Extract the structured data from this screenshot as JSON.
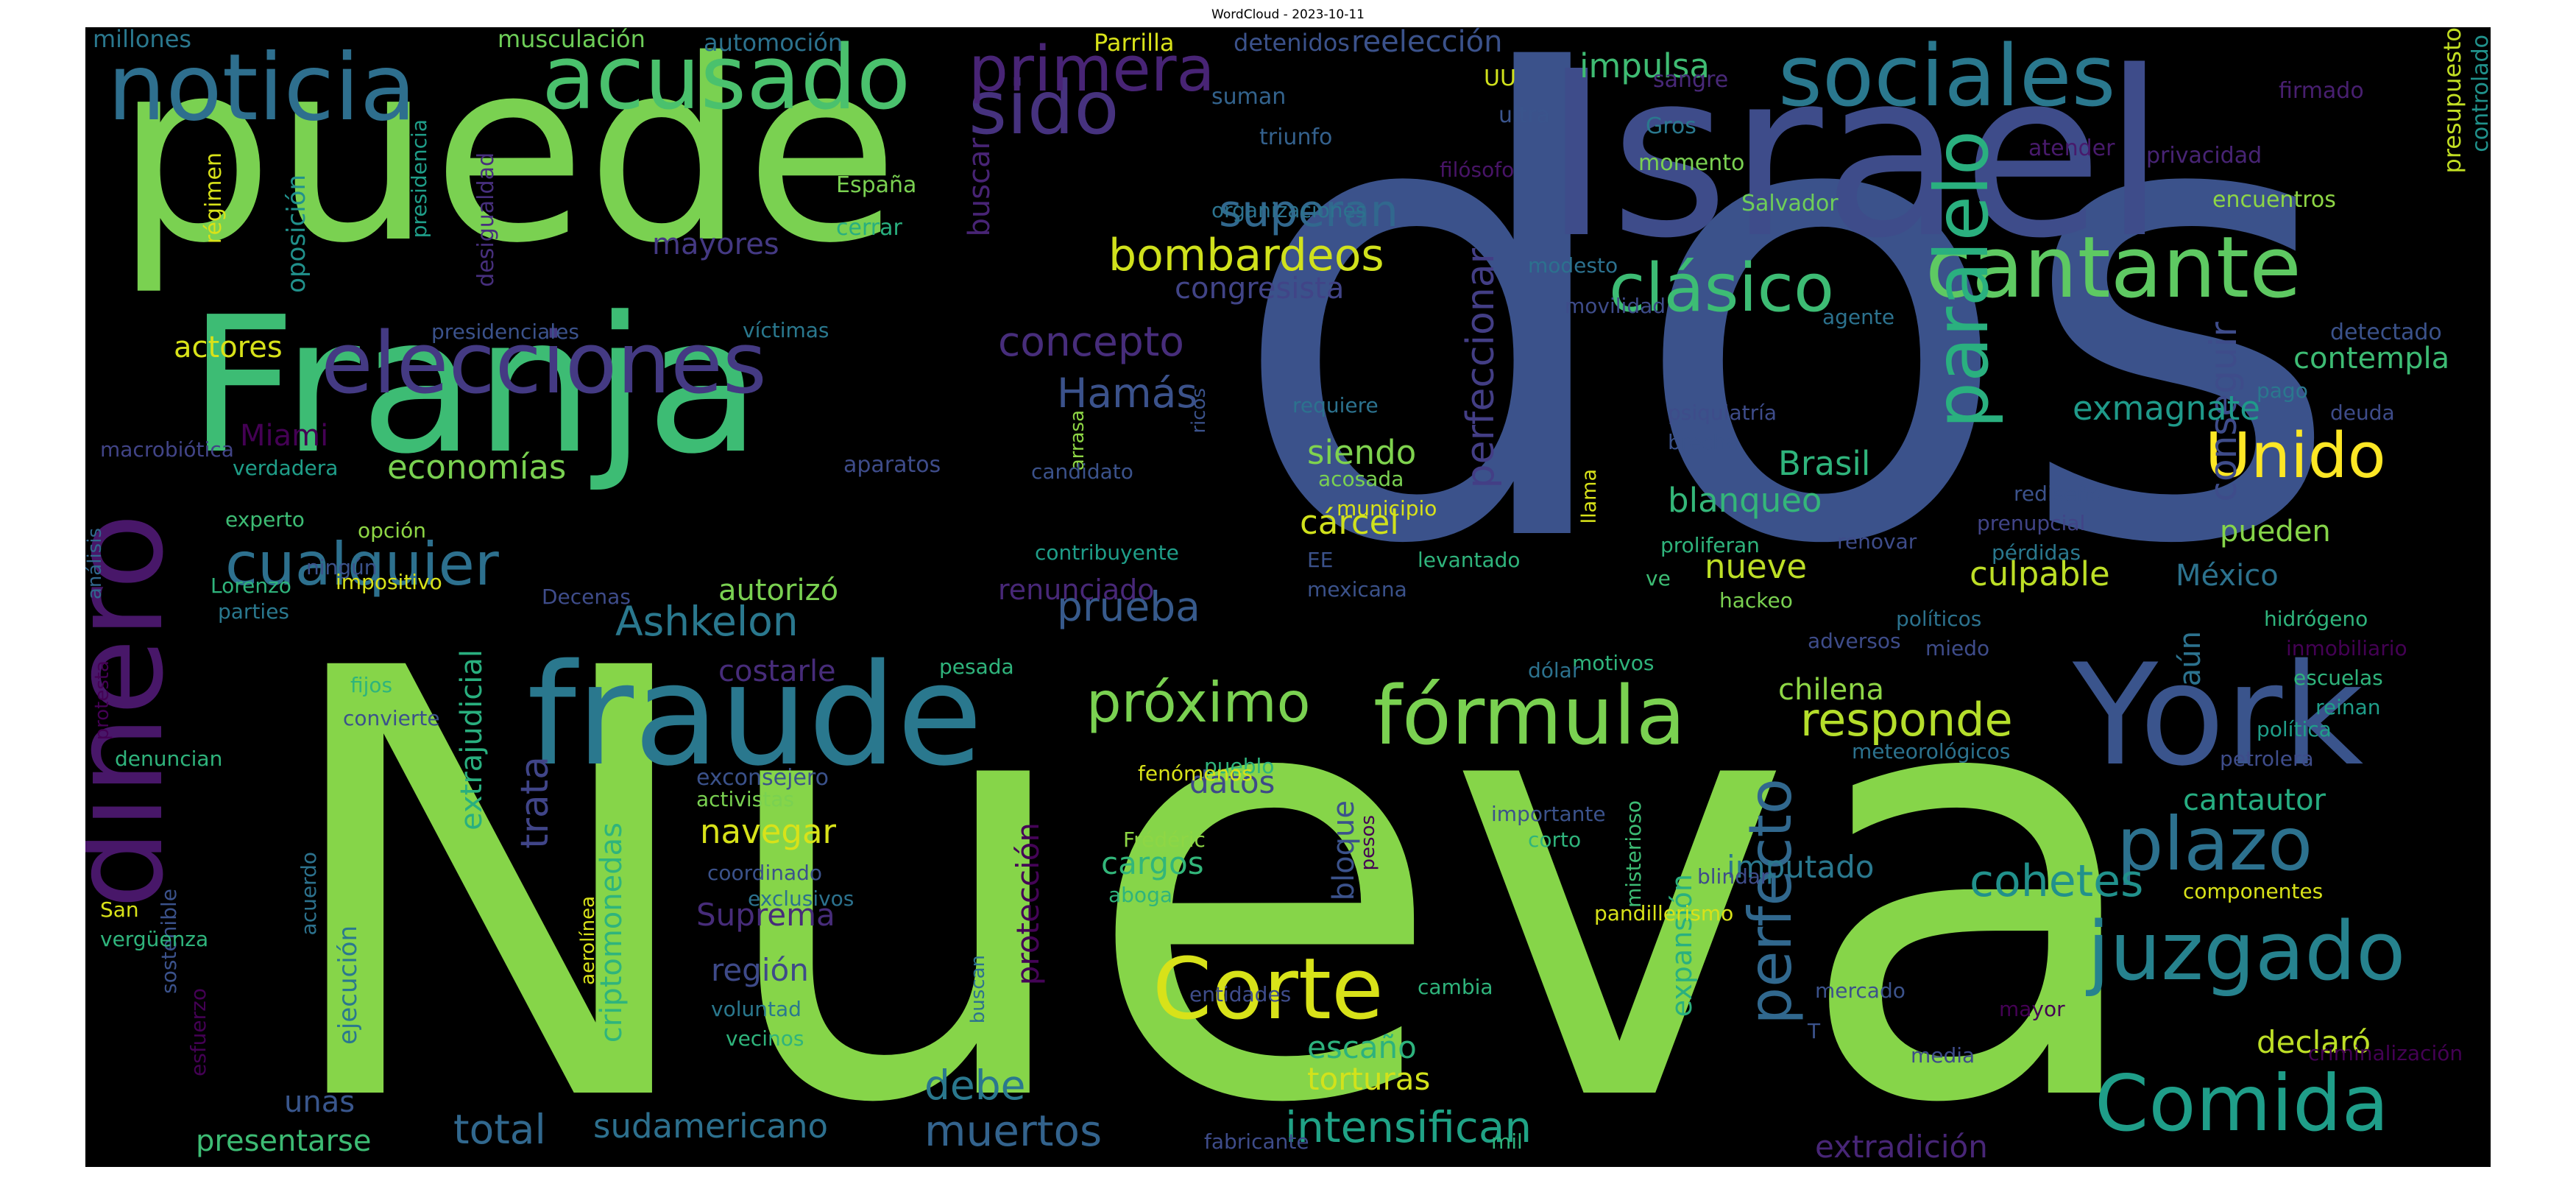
{
  "title": "WordCloud - 2023-10-11",
  "canvas_background": "#000000",
  "colormap": [
    "#440154",
    "#3b528b",
    "#21918c",
    "#5ec962",
    "#fde725"
  ],
  "words": [
    {
      "text": "dos",
      "color": "#3b528b"
    },
    {
      "text": "Nueva",
      "color": "#86d549"
    },
    {
      "text": "puede",
      "color": "#7ad151"
    },
    {
      "text": "Israel",
      "color": "#3e4c8a"
    },
    {
      "text": "Franja",
      "color": "#3dbc74"
    },
    {
      "text": "fraude",
      "color": "#2a788e"
    },
    {
      "text": "York",
      "color": "#3a548c"
    },
    {
      "text": "dinero",
      "color": "#481769"
    },
    {
      "text": "noticia",
      "color": "#2e6f8e"
    },
    {
      "text": "acusado",
      "color": "#4ac16d"
    },
    {
      "text": "sociales",
      "color": "#2a788e"
    },
    {
      "text": "elecciones",
      "color": "#443a83"
    },
    {
      "text": "cantante",
      "color": "#5ec962"
    },
    {
      "text": "paralelo",
      "color": "#2ab07f"
    },
    {
      "text": "fórmula",
      "color": "#7ad151"
    },
    {
      "text": "juzgado",
      "color": "#26828e"
    },
    {
      "text": "Comida",
      "color": "#1f9e89"
    },
    {
      "text": "Corte",
      "color": "#d8e219"
    },
    {
      "text": "plazo",
      "color": "#2c718e"
    },
    {
      "text": "sido",
      "color": "#46327e"
    },
    {
      "text": "primera",
      "color": "#482475"
    },
    {
      "text": "clásico",
      "color": "#3dbc74"
    },
    {
      "text": "cualquier",
      "color": "#2d708e"
    },
    {
      "text": "próximo",
      "color": "#7ad151"
    },
    {
      "text": "perfecto",
      "color": "#31688e"
    },
    {
      "text": "Unido",
      "color": "#fde725"
    },
    {
      "text": "bombardeos",
      "color": "#d0e11c"
    },
    {
      "text": "superan",
      "color": "#31688e"
    },
    {
      "text": "responde",
      "color": "#b5de2b"
    },
    {
      "text": "concepto",
      "color": "#472d7b"
    },
    {
      "text": "Hamás",
      "color": "#3b528b"
    },
    {
      "text": "muertos",
      "color": "#33638d"
    },
    {
      "text": "intensifican",
      "color": "#20a386"
    },
    {
      "text": "cohetes",
      "color": "#21918c"
    },
    {
      "text": "prueba",
      "color": "#375a8c"
    },
    {
      "text": "perfeccionar",
      "color": "#433e85"
    },
    {
      "text": "Ashkelon",
      "color": "#2a788e"
    },
    {
      "text": "conseguir",
      "color": "#3e4c8a"
    },
    {
      "text": "total",
      "color": "#31688e"
    },
    {
      "text": "debe",
      "color": "#2a788e"
    },
    {
      "text": "mayores",
      "color": "#443983"
    },
    {
      "text": "congresista",
      "color": "#414487"
    },
    {
      "text": "exmagnate",
      "color": "#1f9a8a"
    },
    {
      "text": "culpable",
      "color": "#bddf26"
    },
    {
      "text": "trata",
      "color": "#404588"
    },
    {
      "text": "impulsa",
      "color": "#3fbc73"
    },
    {
      "text": "Brasil",
      "color": "#2fb47c"
    },
    {
      "text": "blanqueo",
      "color": "#34b679"
    },
    {
      "text": "nueve",
      "color": "#bddf26"
    },
    {
      "text": "siendo",
      "color": "#7fd34e"
    },
    {
      "text": "cárcel",
      "color": "#d0e11c"
    },
    {
      "text": "economías",
      "color": "#7ad151"
    },
    {
      "text": "México",
      "color": "#2c728e"
    },
    {
      "text": "pueden",
      "color": "#86d549"
    },
    {
      "text": "actores",
      "color": "#d8e219"
    },
    {
      "text": "autorizó",
      "color": "#7ad151"
    },
    {
      "text": "renunciado",
      "color": "#482878"
    },
    {
      "text": "extradición",
      "color": "#482677"
    },
    {
      "text": "torturas",
      "color": "#d2e21b"
    },
    {
      "text": "escaño",
      "color": "#2db27d"
    },
    {
      "text": "navegar",
      "color": "#d8e219"
    },
    {
      "text": "cargos",
      "color": "#32b67a"
    },
    {
      "text": "imputado",
      "color": "#2a788e"
    },
    {
      "text": "Suprema",
      "color": "#472c7a"
    },
    {
      "text": "región",
      "color": "#3e4a89"
    },
    {
      "text": "chilena",
      "color": "#8ed645"
    },
    {
      "text": "cantautor",
      "color": "#26ad81"
    },
    {
      "text": "declaró",
      "color": "#bddf26"
    },
    {
      "text": "criptomonedas",
      "color": "#2fb47c"
    },
    {
      "text": "extrajudicial",
      "color": "#29af7f"
    },
    {
      "text": "expansión",
      "color": "#2ab07f"
    },
    {
      "text": "sudamericano",
      "color": "#2d708e"
    },
    {
      "text": "presentarse",
      "color": "#3dbc74"
    },
    {
      "text": "protección",
      "color": "#450457"
    },
    {
      "text": "bloque",
      "color": "#3b528b"
    },
    {
      "text": "datos",
      "color": "#3e4a89"
    },
    {
      "text": "Miami",
      "color": "#440154"
    },
    {
      "text": "contempla",
      "color": "#3dbc74"
    },
    {
      "text": "aún",
      "color": "#2c728e"
    },
    {
      "text": "costarle",
      "color": "#472c7a"
    },
    {
      "text": "oposición",
      "color": "#21918c"
    },
    {
      "text": "ejecución",
      "color": "#2a788e"
    },
    {
      "text": "unas",
      "color": "#39568c"
    },
    {
      "text": "buscar",
      "color": "#482475"
    },
    {
      "text": "reelección",
      "color": "#3b528b"
    },
    {
      "text": "millones",
      "color": "#2a788e"
    },
    {
      "text": "musculación",
      "color": "#6ece58"
    },
    {
      "text": "automoción",
      "color": "#2c728e"
    },
    {
      "text": "Parrilla",
      "color": "#d8e219"
    },
    {
      "text": "detenidos",
      "color": "#3b528b"
    },
    {
      "text": "UU",
      "color": "#d0e11c"
    },
    {
      "text": "Gros",
      "color": "#2a788e"
    },
    {
      "text": "sangre",
      "color": "#482878"
    },
    {
      "text": "firmado",
      "color": "#481f70"
    },
    {
      "text": "presupuesto",
      "color": "#c2df23"
    },
    {
      "text": "controlado",
      "color": "#20928c"
    },
    {
      "text": "régimen",
      "color": "#d8e219"
    },
    {
      "text": "presidencia",
      "color": "#1f9e89"
    },
    {
      "text": "desigualdad",
      "color": "#472f7d"
    },
    {
      "text": "España",
      "color": "#7ad151"
    },
    {
      "text": "cerrar",
      "color": "#29af7f"
    },
    {
      "text": "suman",
      "color": "#33638d"
    },
    {
      "text": "triunfo",
      "color": "#34618d"
    },
    {
      "text": "filósofo",
      "color": "#481467"
    },
    {
      "text": "organizaciones",
      "color": "#2c738e"
    },
    {
      "text": "ultra",
      "color": "#3a548c"
    },
    {
      "text": "momento",
      "color": "#7ad151"
    },
    {
      "text": "Salvador",
      "color": "#6ece58"
    },
    {
      "text": "atender",
      "color": "#481a6c"
    },
    {
      "text": "privacidad",
      "color": "#482475"
    },
    {
      "text": "encuentros",
      "color": "#8ed645"
    },
    {
      "text": "presidenciales",
      "color": "#3b528b"
    },
    {
      "text": "víctimas",
      "color": "#2a788e"
    },
    {
      "text": "modesto",
      "color": "#2c718e"
    },
    {
      "text": "movilidad",
      "color": "#3e4c8a"
    },
    {
      "text": "agente",
      "color": "#2c728e"
    },
    {
      "text": "detectado",
      "color": "#3b528b"
    },
    {
      "text": "pago",
      "color": "#2a788e"
    },
    {
      "text": "deuda",
      "color": "#3e4c8a"
    },
    {
      "text": "requiere",
      "color": "#2c728e"
    },
    {
      "text": "psiquiatría",
      "color": "#3e4c8a"
    },
    {
      "text": "brecha",
      "color": "#3b528b"
    },
    {
      "text": "ricos",
      "color": "#3b528b"
    },
    {
      "text": "macrobiótica",
      "color": "#414487"
    },
    {
      "text": "arrasa",
      "color": "#8ed645"
    },
    {
      "text": "aparatos",
      "color": "#3e4c8a"
    },
    {
      "text": "candidato",
      "color": "#3b528b"
    },
    {
      "text": "acosada",
      "color": "#7ad151"
    },
    {
      "text": "municipio",
      "color": "#d8e219"
    },
    {
      "text": "llama",
      "color": "#d8e219"
    },
    {
      "text": "proliferan",
      "color": "#2fb47c"
    },
    {
      "text": "ve",
      "color": "#3dbc74"
    },
    {
      "text": "renovar",
      "color": "#3e4c8a"
    },
    {
      "text": "rediseño",
      "color": "#3b528b"
    },
    {
      "text": "prenupcial",
      "color": "#414487"
    },
    {
      "text": "pérdidas",
      "color": "#2a788e"
    },
    {
      "text": "verdadera",
      "color": "#1f9e89"
    },
    {
      "text": "experto",
      "color": "#3dbc74"
    },
    {
      "text": "opción",
      "color": "#8ed645"
    },
    {
      "text": "ningún",
      "color": "#3b528b"
    },
    {
      "text": "contribuyente",
      "color": "#1f9e89"
    },
    {
      "text": "análisis",
      "color": "#31688e"
    },
    {
      "text": "Lorenzo",
      "color": "#2fb47c"
    },
    {
      "text": "impositivo",
      "color": "#d8e219"
    },
    {
      "text": "Decenas",
      "color": "#3e4c8a"
    },
    {
      "text": "EE",
      "color": "#3b528b"
    },
    {
      "text": "levantado",
      "color": "#2fb47c"
    },
    {
      "text": "mexicana",
      "color": "#3b528b"
    },
    {
      "text": "hackeo",
      "color": "#7ad151"
    },
    {
      "text": "políticos",
      "color": "#2c728e"
    },
    {
      "text": "hidrógeno",
      "color": "#2fb47c"
    },
    {
      "text": "inmobiliario",
      "color": "#440154"
    },
    {
      "text": "parties",
      "color": "#2a788e"
    },
    {
      "text": "miedo",
      "color": "#3e4c8a"
    },
    {
      "text": "escuelas",
      "color": "#2fb47c"
    },
    {
      "text": "reinan",
      "color": "#1f9e89"
    },
    {
      "text": "fijos",
      "color": "#2fb47c"
    },
    {
      "text": "motivos",
      "color": "#2fb47c"
    },
    {
      "text": "adversos",
      "color": "#3e4c8a"
    },
    {
      "text": "pesada",
      "color": "#2fb47c"
    },
    {
      "text": "dólar",
      "color": "#2c728e"
    },
    {
      "text": "convierte",
      "color": "#3b528b"
    },
    {
      "text": "política",
      "color": "#1f9e89"
    },
    {
      "text": "petrolera",
      "color": "#3e4c8a"
    },
    {
      "text": "denuncian",
      "color": "#2fb47c"
    },
    {
      "text": "pueblo",
      "color": "#2fb47c"
    },
    {
      "text": "meteorológicos",
      "color": "#2c728e"
    },
    {
      "text": "fenómenos",
      "color": "#d8e219"
    },
    {
      "text": "protesta",
      "color": "#440154"
    },
    {
      "text": "exconsejero",
      "color": "#3b528b"
    },
    {
      "text": "activistas",
      "color": "#7ad151"
    },
    {
      "text": "importante",
      "color": "#3b528b"
    },
    {
      "text": "corto",
      "color": "#2fb47c"
    },
    {
      "text": "coordinado",
      "color": "#3b528b"
    },
    {
      "text": "Frédéric",
      "color": "#8ed645"
    },
    {
      "text": "pesos",
      "color": "#440154"
    },
    {
      "text": "pandillerismo",
      "color": "#d8e219"
    },
    {
      "text": "blindar",
      "color": "#3e4c8a"
    },
    {
      "text": "misterioso",
      "color": "#3dbc74"
    },
    {
      "text": "componentes",
      "color": "#d8e219"
    },
    {
      "text": "exclusivos",
      "color": "#2c728e"
    },
    {
      "text": "aboga",
      "color": "#2fb47c"
    },
    {
      "text": "acuerdo",
      "color": "#2c728e"
    },
    {
      "text": "sostenible",
      "color": "#3b528b"
    },
    {
      "text": "San",
      "color": "#d8e219"
    },
    {
      "text": "vergüenza",
      "color": "#2fb47c"
    },
    {
      "text": "aerolínea",
      "color": "#d8e219"
    },
    {
      "text": "esfuerzo",
      "color": "#440154"
    },
    {
      "text": "voluntad",
      "color": "#2a788e"
    },
    {
      "text": "buscan",
      "color": "#2c728e"
    },
    {
      "text": "cambia",
      "color": "#2fb47c"
    },
    {
      "text": "entidades",
      "color": "#3e4c8a"
    },
    {
      "text": "vecinos",
      "color": "#2fb47c"
    },
    {
      "text": "mercado",
      "color": "#3b528b"
    },
    {
      "text": "T",
      "color": "#3b528b"
    },
    {
      "text": "mayor",
      "color": "#440154"
    },
    {
      "text": "media",
      "color": "#3e4c8a"
    },
    {
      "text": "criminalización",
      "color": "#440154"
    },
    {
      "text": "fabricante",
      "color": "#3e4c8a"
    },
    {
      "text": "mil",
      "color": "#2fb47c"
    }
  ]
}
